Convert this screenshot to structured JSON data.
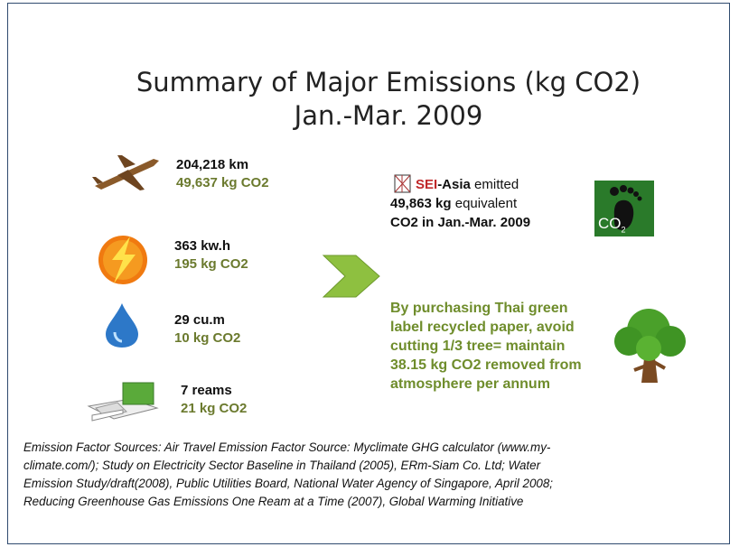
{
  "title": {
    "line1": "Summary of Major Emissions (kg CO2)",
    "line2": "Jan.-Mar. 2009"
  },
  "items": [
    {
      "amount": "204,218 km",
      "emission": "49,637  kg CO2"
    },
    {
      "amount": "363 kw.h",
      "emission": "195  kg CO2"
    },
    {
      "amount": "29 cu.m",
      "emission": "10  kg CO2"
    },
    {
      "amount": "7 reams",
      "emission": "21  kg CO2"
    }
  ],
  "summary": {
    "org_red": "SEI",
    "org_rest": "-Asia",
    "verb": "emitted",
    "amount": "49,863 kg",
    "unit": "equivalent",
    "period": "CO2 in Jan.-Mar. 2009"
  },
  "footprint": {
    "label": "CO",
    "sub": "2"
  },
  "paper_note": [
    "By purchasing Thai green",
    "label recycled paper, avoid",
    "cutting 1/3 tree= maintain",
    "38.15 kg CO2 removed from",
    "atmosphere per annum"
  ],
  "sources": [
    "Emission Factor Sources: Air Travel Emission Factor Source: Myclimate GHG calculator (www.my-",
    "climate.com/); Study on Electricity Sector Baseline in Thailand (2005), ERm-Siam Co. Ltd; Water",
    "Emission Study/draft(2008), Public Utilities Board, National Water Agency of Singapore, April 2008;",
    "Reducing Greenhouse Gas Emissions One Ream at a Time (2007), Global Warming Initiative"
  ]
}
